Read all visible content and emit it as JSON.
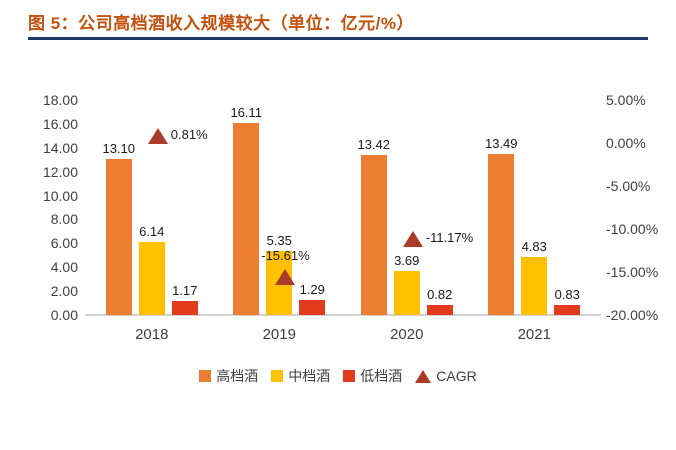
{
  "header": {
    "title": "图 5：公司高档酒收入规模较大（单位：亿元/%）"
  },
  "chart_data": {
    "type": "bar",
    "title": "公司高档酒收入规模较大",
    "unit": "亿元/%",
    "categories": [
      "2018",
      "2019",
      "2020",
      "2021"
    ],
    "series": [
      {
        "name": "高档酒",
        "color": "#ed7d31",
        "values": [
          13.1,
          16.11,
          13.42,
          13.49
        ],
        "labels": [
          "13.10",
          "16.11",
          "13.42",
          "13.49"
        ]
      },
      {
        "name": "中档酒",
        "color": "#ffc000",
        "values": [
          6.14,
          5.35,
          3.69,
          4.83
        ],
        "labels": [
          "6.14",
          "5.35",
          "3.69",
          "4.83"
        ]
      },
      {
        "name": "低档酒",
        "color": "#e23b1e",
        "values": [
          1.17,
          1.29,
          0.82,
          0.83
        ],
        "labels": [
          "1.17",
          "1.29",
          "0.82",
          "0.83"
        ]
      }
    ],
    "cagr": {
      "name": "CAGR",
      "color": "#a93b28",
      "points": [
        {
          "category": "2018",
          "value": 0.81,
          "label": "0.81%",
          "label_position": "right"
        },
        {
          "category": "2019",
          "value": -15.61,
          "label": "-15.61%",
          "label_position": "above"
        },
        {
          "category": "2020",
          "value": -11.17,
          "label": "-11.17%",
          "label_position": "right"
        }
      ]
    },
    "left_axis": {
      "min": 0,
      "max": 18,
      "ticks": [
        "18.00",
        "16.00",
        "14.00",
        "12.00",
        "10.00",
        "8.00",
        "6.00",
        "4.00",
        "2.00",
        "0.00"
      ]
    },
    "right_axis": {
      "min": -20,
      "max": 5,
      "ticks": [
        "5.00%",
        "0.00%",
        "-5.00%",
        "-10.00%",
        "-15.00%",
        "-20.00%"
      ]
    },
    "legend": [
      "高档酒",
      "中档酒",
      "低档酒",
      "CAGR"
    ],
    "grid": false,
    "legend_position": "bottom-center"
  }
}
